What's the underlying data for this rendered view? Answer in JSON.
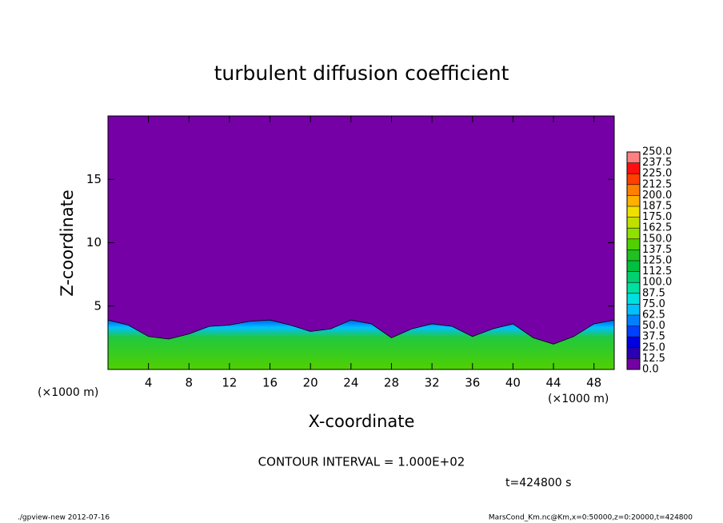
{
  "chart_data": {
    "type": "contour",
    "title": "turbulent diffusion coefficient",
    "x_label": "X-coordinate",
    "y_label": "Z-coordinate",
    "x_unit": "(×1000 m)",
    "y_unit": "(×1000 m)",
    "contour_note": "CONTOUR INTERVAL = 1.000E+02",
    "time_note": "t=424800 s",
    "footer_left": "./gpview-new  2012-07-16",
    "footer_right": "MarsCond_Km.nc@Km,x=0:50000,z=0:20000,t=424800",
    "background_color": "#7400a6",
    "x": [
      0,
      2,
      4,
      6,
      8,
      10,
      12,
      14,
      16,
      18,
      20,
      22,
      24,
      26,
      28,
      30,
      32,
      34,
      36,
      38,
      40,
      42,
      44,
      46,
      48,
      50
    ],
    "values": [
      3.9,
      3.5,
      2.6,
      2.4,
      2.8,
      3.4,
      3.5,
      3.8,
      3.9,
      3.5,
      3.0,
      3.2,
      3.9,
      3.6,
      2.5,
      3.2,
      3.6,
      3.4,
      2.6,
      3.2,
      3.6,
      2.5,
      2.0,
      2.6,
      3.6,
      3.9
    ],
    "xlim": [
      0,
      50
    ],
    "ylim": [
      0,
      20
    ],
    "xticks": [
      4,
      8,
      12,
      16,
      20,
      24,
      28,
      32,
      36,
      40,
      44,
      48
    ],
    "yticks": [
      5,
      10,
      15
    ],
    "levels": [
      {
        "value": 0,
        "label": "0.0"
      },
      {
        "value": 12.5,
        "label": "12.5"
      },
      {
        "value": 25,
        "label": "25.0"
      },
      {
        "value": 37.5,
        "label": "37.5"
      },
      {
        "value": 50,
        "label": "50.0"
      },
      {
        "value": 62.5,
        "label": "62.5"
      },
      {
        "value": 75,
        "label": "75.0"
      },
      {
        "value": 87.5,
        "label": "87.5"
      },
      {
        "value": 100,
        "label": "100.0"
      },
      {
        "value": 112.5,
        "label": "112.5"
      },
      {
        "value": 125,
        "label": "125.0"
      },
      {
        "value": 137.5,
        "label": "137.5"
      },
      {
        "value": 150,
        "label": "150.0"
      },
      {
        "value": 162.5,
        "label": "162.5"
      },
      {
        "value": 175,
        "label": "175.0"
      },
      {
        "value": 187.5,
        "label": "187.5"
      },
      {
        "value": 200,
        "label": "200.0"
      },
      {
        "value": 212.5,
        "label": "212.5"
      },
      {
        "value": 225,
        "label": "225.0"
      },
      {
        "value": 237.5,
        "label": "237.5"
      },
      {
        "value": 250,
        "label": "250.0"
      }
    ],
    "level_colors": [
      "#7400a6",
      "#2a00b4",
      "#0000e0",
      "#0040ff",
      "#0080ff",
      "#00c0ff",
      "#00e0e0",
      "#00e0a0",
      "#00d070",
      "#00c040",
      "#20c020",
      "#50d000",
      "#90e000",
      "#c0e000",
      "#f0e000",
      "#ffb000",
      "#ff8000",
      "#ff4000",
      "#ff1010",
      "#ff8080"
    ]
  }
}
